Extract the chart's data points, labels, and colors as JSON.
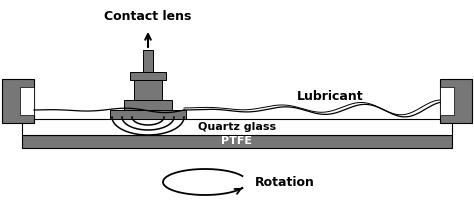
{
  "bg_color": "#ffffff",
  "gray": "#777777",
  "gray_dark": "#666666",
  "black": "#000000",
  "white": "#ffffff",
  "label_contact_lens": "Contact lens",
  "label_lubricant": "Lubricant",
  "label_quartz": "Quartz glass",
  "label_ptfe": "PTFE",
  "label_rotation": "Rotation",
  "figsize": [
    4.74,
    2.1
  ],
  "dpi": 100
}
